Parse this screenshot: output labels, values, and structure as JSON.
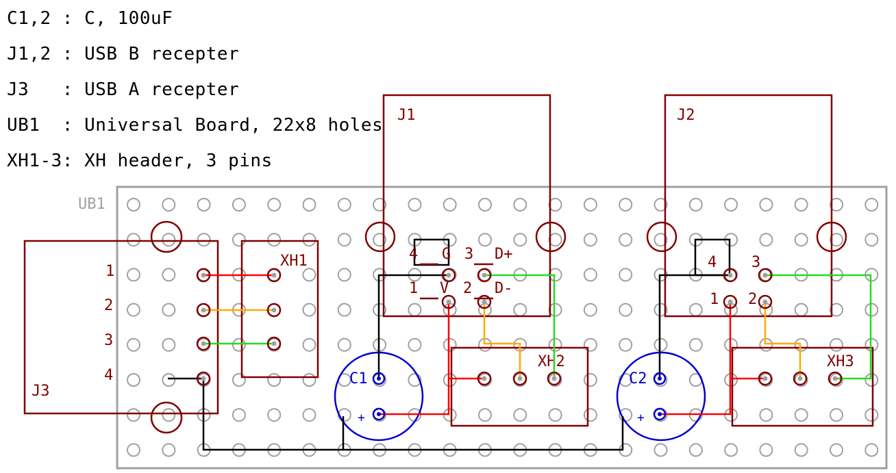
{
  "notes": [
    "C1,2 : C, 100uF",
    "J1,2 : USB B recepter",
    "J3   : USB A recepter",
    "UB1  : Universal Board, 22x8 holes",
    "XH1-3: XH header, 3 pins"
  ],
  "board": {
    "label": "UB1",
    "grid": "22x8 holes"
  },
  "components": {
    "j1": {
      "ref": "J1",
      "pins": {
        "p4": "4",
        "p3": "3",
        "p1": "1",
        "p2": "2",
        "d_plus": "D+",
        "d_minus": "D-",
        "g": "G",
        "v": "V"
      }
    },
    "j2": {
      "ref": "J2",
      "pins": {
        "p4": "4",
        "p3": "3",
        "p1": "1",
        "p2": "2"
      }
    },
    "j3": {
      "ref": "J3",
      "pins": [
        "1",
        "2",
        "3",
        "4"
      ]
    },
    "xh1": {
      "ref": "XH1"
    },
    "xh2": {
      "ref": "XH2"
    },
    "xh3": {
      "ref": "XH3"
    },
    "c1": {
      "ref": "C1",
      "polarity": "+"
    },
    "c2": {
      "ref": "C2",
      "polarity": "+"
    }
  },
  "colors": {
    "component": "#800000",
    "capacitor": "#0000cc",
    "board": "#a0a0a0",
    "wire_power": "#ff0000",
    "wire_ground": "#000000",
    "wire_d_minus": "#ffaa00",
    "wire_d_plus": "#22dd22"
  }
}
